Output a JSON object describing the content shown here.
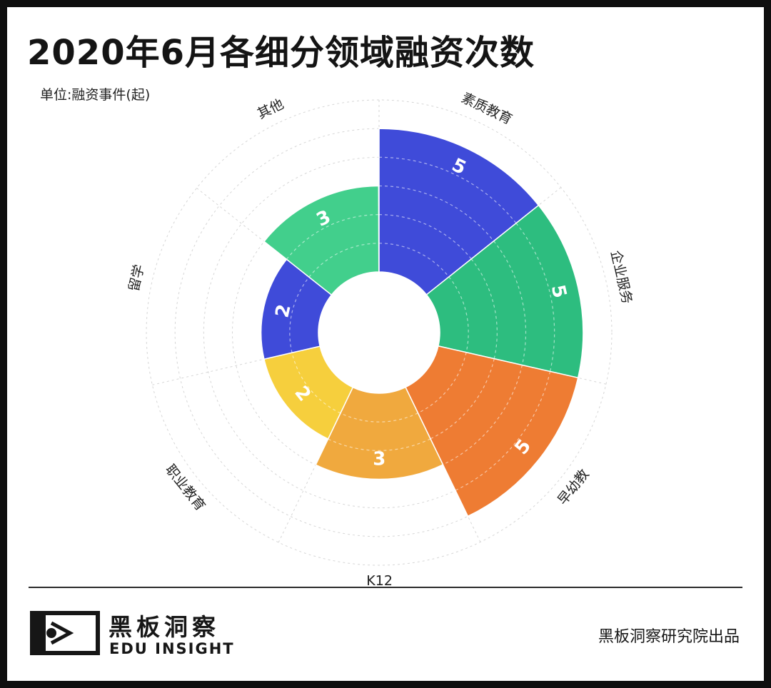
{
  "header": {
    "title": "2020年6月各细分领域融资次数",
    "unit_label": "单位:融资事件(起)"
  },
  "chart_data": {
    "type": "polar-bar",
    "title": "2020年6月各细分领域融资次数",
    "unit": "单位:融资事件(起)",
    "categories": [
      "素质教育",
      "企业服务",
      "早幼教",
      "K12",
      "职业教育",
      "留学",
      "其他"
    ],
    "values": [
      5,
      5,
      5,
      3,
      2,
      2,
      3
    ],
    "colors": [
      "#3f4bd9",
      "#2dbd7f",
      "#ee7c33",
      "#f0a93e",
      "#f6cf3d",
      "#3f4bd9",
      "#42cf8c"
    ],
    "value_max": 6,
    "grid": true
  },
  "footer": {
    "brand_cn": "黑板洞察",
    "brand_en": "EDU INSIGHT",
    "credit": "黑板洞察研究院出品"
  }
}
